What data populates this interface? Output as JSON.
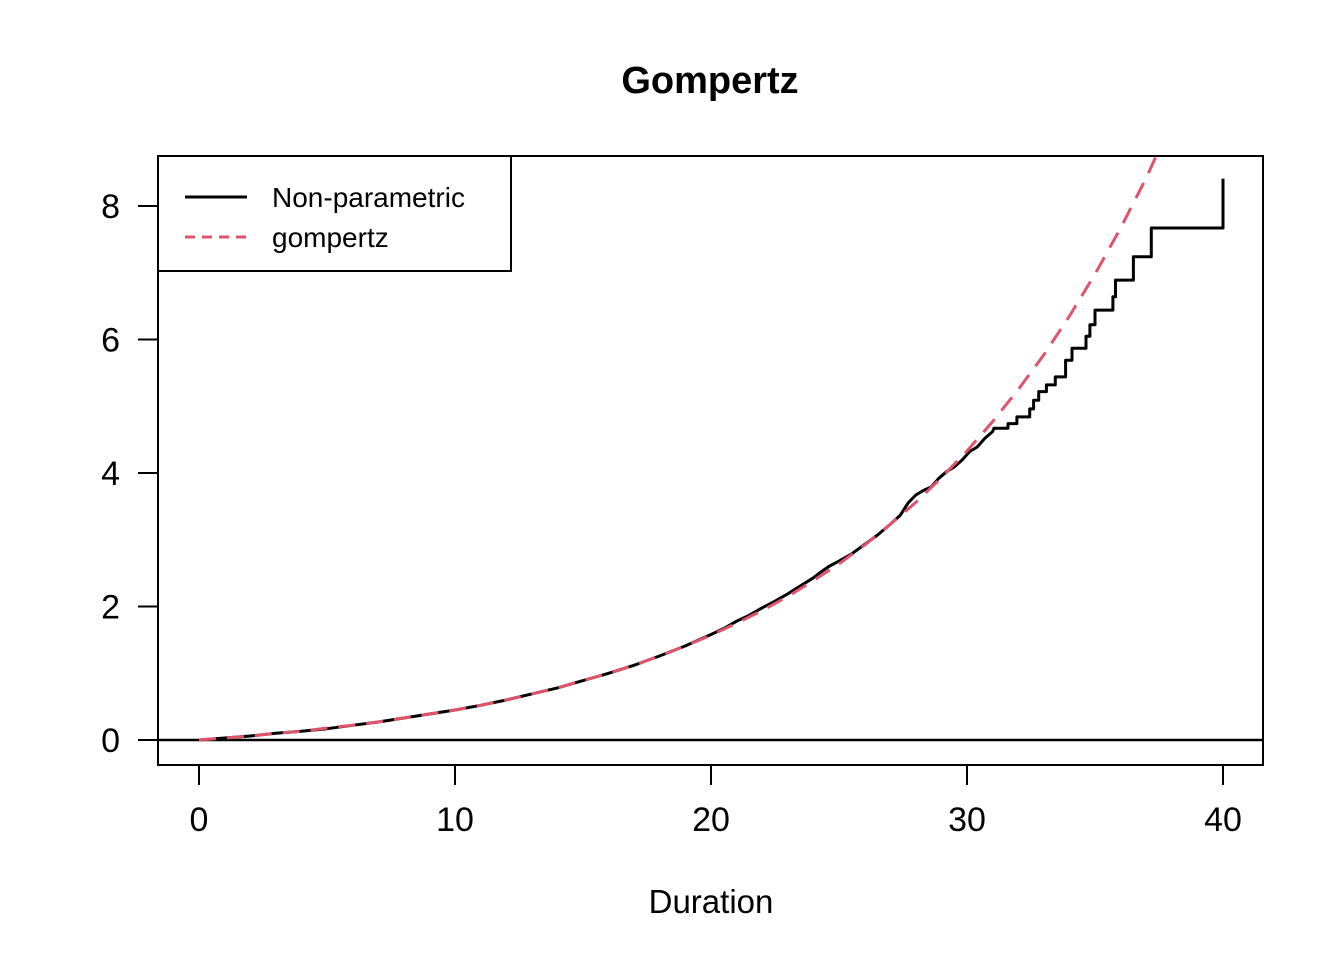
{
  "title": "Gompertz",
  "xlabel": "Duration",
  "colors": {
    "nonparametric": "#000000",
    "gompertz_fit": "#DF536B",
    "background": "#ffffff",
    "frame": "#000000"
  },
  "legend": {
    "position": "topleft",
    "items": [
      {
        "label": "Non-parametric",
        "color": "#000000",
        "line_style": "solid"
      },
      {
        "label": "gompertz",
        "color": "#DF536B",
        "line_style": "dashed"
      }
    ]
  },
  "chart_data": {
    "type": "line",
    "title": "Gompertz",
    "xlabel": "Duration",
    "ylabel": "",
    "grid": false,
    "legend_position": "topleft",
    "xlim": [
      -1.6,
      41.6
    ],
    "ylim": [
      -0.37,
      8.75
    ],
    "x_ticks": [
      0,
      10,
      20,
      30,
      40
    ],
    "y_ticks": [
      0,
      2,
      4,
      6,
      8
    ],
    "reference_line_y": 0,
    "series": [
      {
        "name": "Non-parametric",
        "color": "#000000",
        "style": "solid",
        "points": [
          [
            0,
            0
          ],
          [
            1,
            0.03
          ],
          [
            2,
            0.06
          ],
          [
            3,
            0.1
          ],
          [
            4,
            0.13
          ],
          [
            5,
            0.17
          ],
          [
            6,
            0.22
          ],
          [
            7,
            0.27
          ],
          [
            8,
            0.33
          ],
          [
            9,
            0.39
          ],
          [
            10,
            0.45
          ],
          [
            11,
            0.52
          ],
          [
            12,
            0.6
          ],
          [
            13,
            0.69
          ],
          [
            14,
            0.78
          ],
          [
            15,
            0.89
          ],
          [
            16,
            1.0
          ],
          [
            17,
            1.12
          ],
          [
            18,
            1.26
          ],
          [
            19,
            1.41
          ],
          [
            20,
            1.58
          ],
          [
            20.5,
            1.67
          ],
          [
            21,
            1.78
          ],
          [
            21.5,
            1.87
          ],
          [
            22,
            1.98
          ],
          [
            22.5,
            2.08
          ],
          [
            23,
            2.19
          ],
          [
            23.5,
            2.31
          ],
          [
            24,
            2.43
          ],
          [
            24.3,
            2.52
          ],
          [
            24.6,
            2.6
          ],
          [
            25,
            2.68
          ],
          [
            25.5,
            2.79
          ],
          [
            26,
            2.93
          ],
          [
            26.5,
            3.07
          ],
          [
            27,
            3.23
          ],
          [
            27.4,
            3.37
          ],
          [
            27.7,
            3.55
          ],
          [
            28,
            3.67
          ],
          [
            28.3,
            3.74
          ],
          [
            28.6,
            3.79
          ],
          [
            28.9,
            3.92
          ],
          [
            29.2,
            4.02
          ],
          [
            29.5,
            4.09
          ],
          [
            29.8,
            4.19
          ],
          [
            30.1,
            4.32
          ],
          [
            30.4,
            4.39
          ],
          [
            30.7,
            4.52
          ],
          [
            31,
            4.62
          ],
          [
            31.05,
            4.67
          ],
          [
            31.6,
            4.67
          ],
          [
            31.6,
            4.74
          ],
          [
            31.95,
            4.74
          ],
          [
            31.95,
            4.84
          ],
          [
            32.45,
            4.84
          ],
          [
            32.45,
            4.96
          ],
          [
            32.6,
            4.96
          ],
          [
            32.6,
            5.09
          ],
          [
            32.8,
            5.09
          ],
          [
            32.8,
            5.22
          ],
          [
            33.1,
            5.22
          ],
          [
            33.1,
            5.32
          ],
          [
            33.45,
            5.32
          ],
          [
            33.45,
            5.44
          ],
          [
            33.85,
            5.44
          ],
          [
            33.85,
            5.69
          ],
          [
            34.1,
            5.69
          ],
          [
            34.1,
            5.87
          ],
          [
            34.65,
            5.87
          ],
          [
            34.65,
            6.05
          ],
          [
            34.8,
            6.05
          ],
          [
            34.8,
            6.22
          ],
          [
            35,
            6.22
          ],
          [
            35,
            6.44
          ],
          [
            35.7,
            6.44
          ],
          [
            35.7,
            6.64
          ],
          [
            35.8,
            6.64
          ],
          [
            35.8,
            6.89
          ],
          [
            36.5,
            6.89
          ],
          [
            36.5,
            7.24
          ],
          [
            37.2,
            7.24
          ],
          [
            37.2,
            7.67
          ],
          [
            40,
            7.67
          ],
          [
            40,
            8.41
          ]
        ]
      },
      {
        "name": "gompertz",
        "color": "#DF536B",
        "style": "dashed",
        "points": [
          [
            0,
            0
          ],
          [
            1,
            0.03
          ],
          [
            2,
            0.06
          ],
          [
            3,
            0.1
          ],
          [
            4,
            0.13
          ],
          [
            5,
            0.18
          ],
          [
            6,
            0.22
          ],
          [
            7,
            0.27
          ],
          [
            8,
            0.33
          ],
          [
            9,
            0.39
          ],
          [
            10,
            0.45
          ],
          [
            11,
            0.52
          ],
          [
            12,
            0.6
          ],
          [
            13,
            0.69
          ],
          [
            14,
            0.78
          ],
          [
            15,
            0.89
          ],
          [
            16,
            1.0
          ],
          [
            17,
            1.12
          ],
          [
            18,
            1.26
          ],
          [
            19,
            1.41
          ],
          [
            20,
            1.57
          ],
          [
            21,
            1.75
          ],
          [
            22,
            1.94
          ],
          [
            23,
            2.15
          ],
          [
            24,
            2.39
          ],
          [
            25,
            2.64
          ],
          [
            26,
            2.92
          ],
          [
            27,
            3.23
          ],
          [
            28,
            3.56
          ],
          [
            29,
            3.93
          ],
          [
            30,
            4.33
          ],
          [
            31,
            4.77
          ],
          [
            32,
            5.25
          ],
          [
            33,
            5.77
          ],
          [
            34,
            6.35
          ],
          [
            35,
            6.98
          ],
          [
            36,
            7.67
          ],
          [
            37,
            8.42
          ],
          [
            37.6,
            8.93
          ]
        ]
      }
    ]
  }
}
